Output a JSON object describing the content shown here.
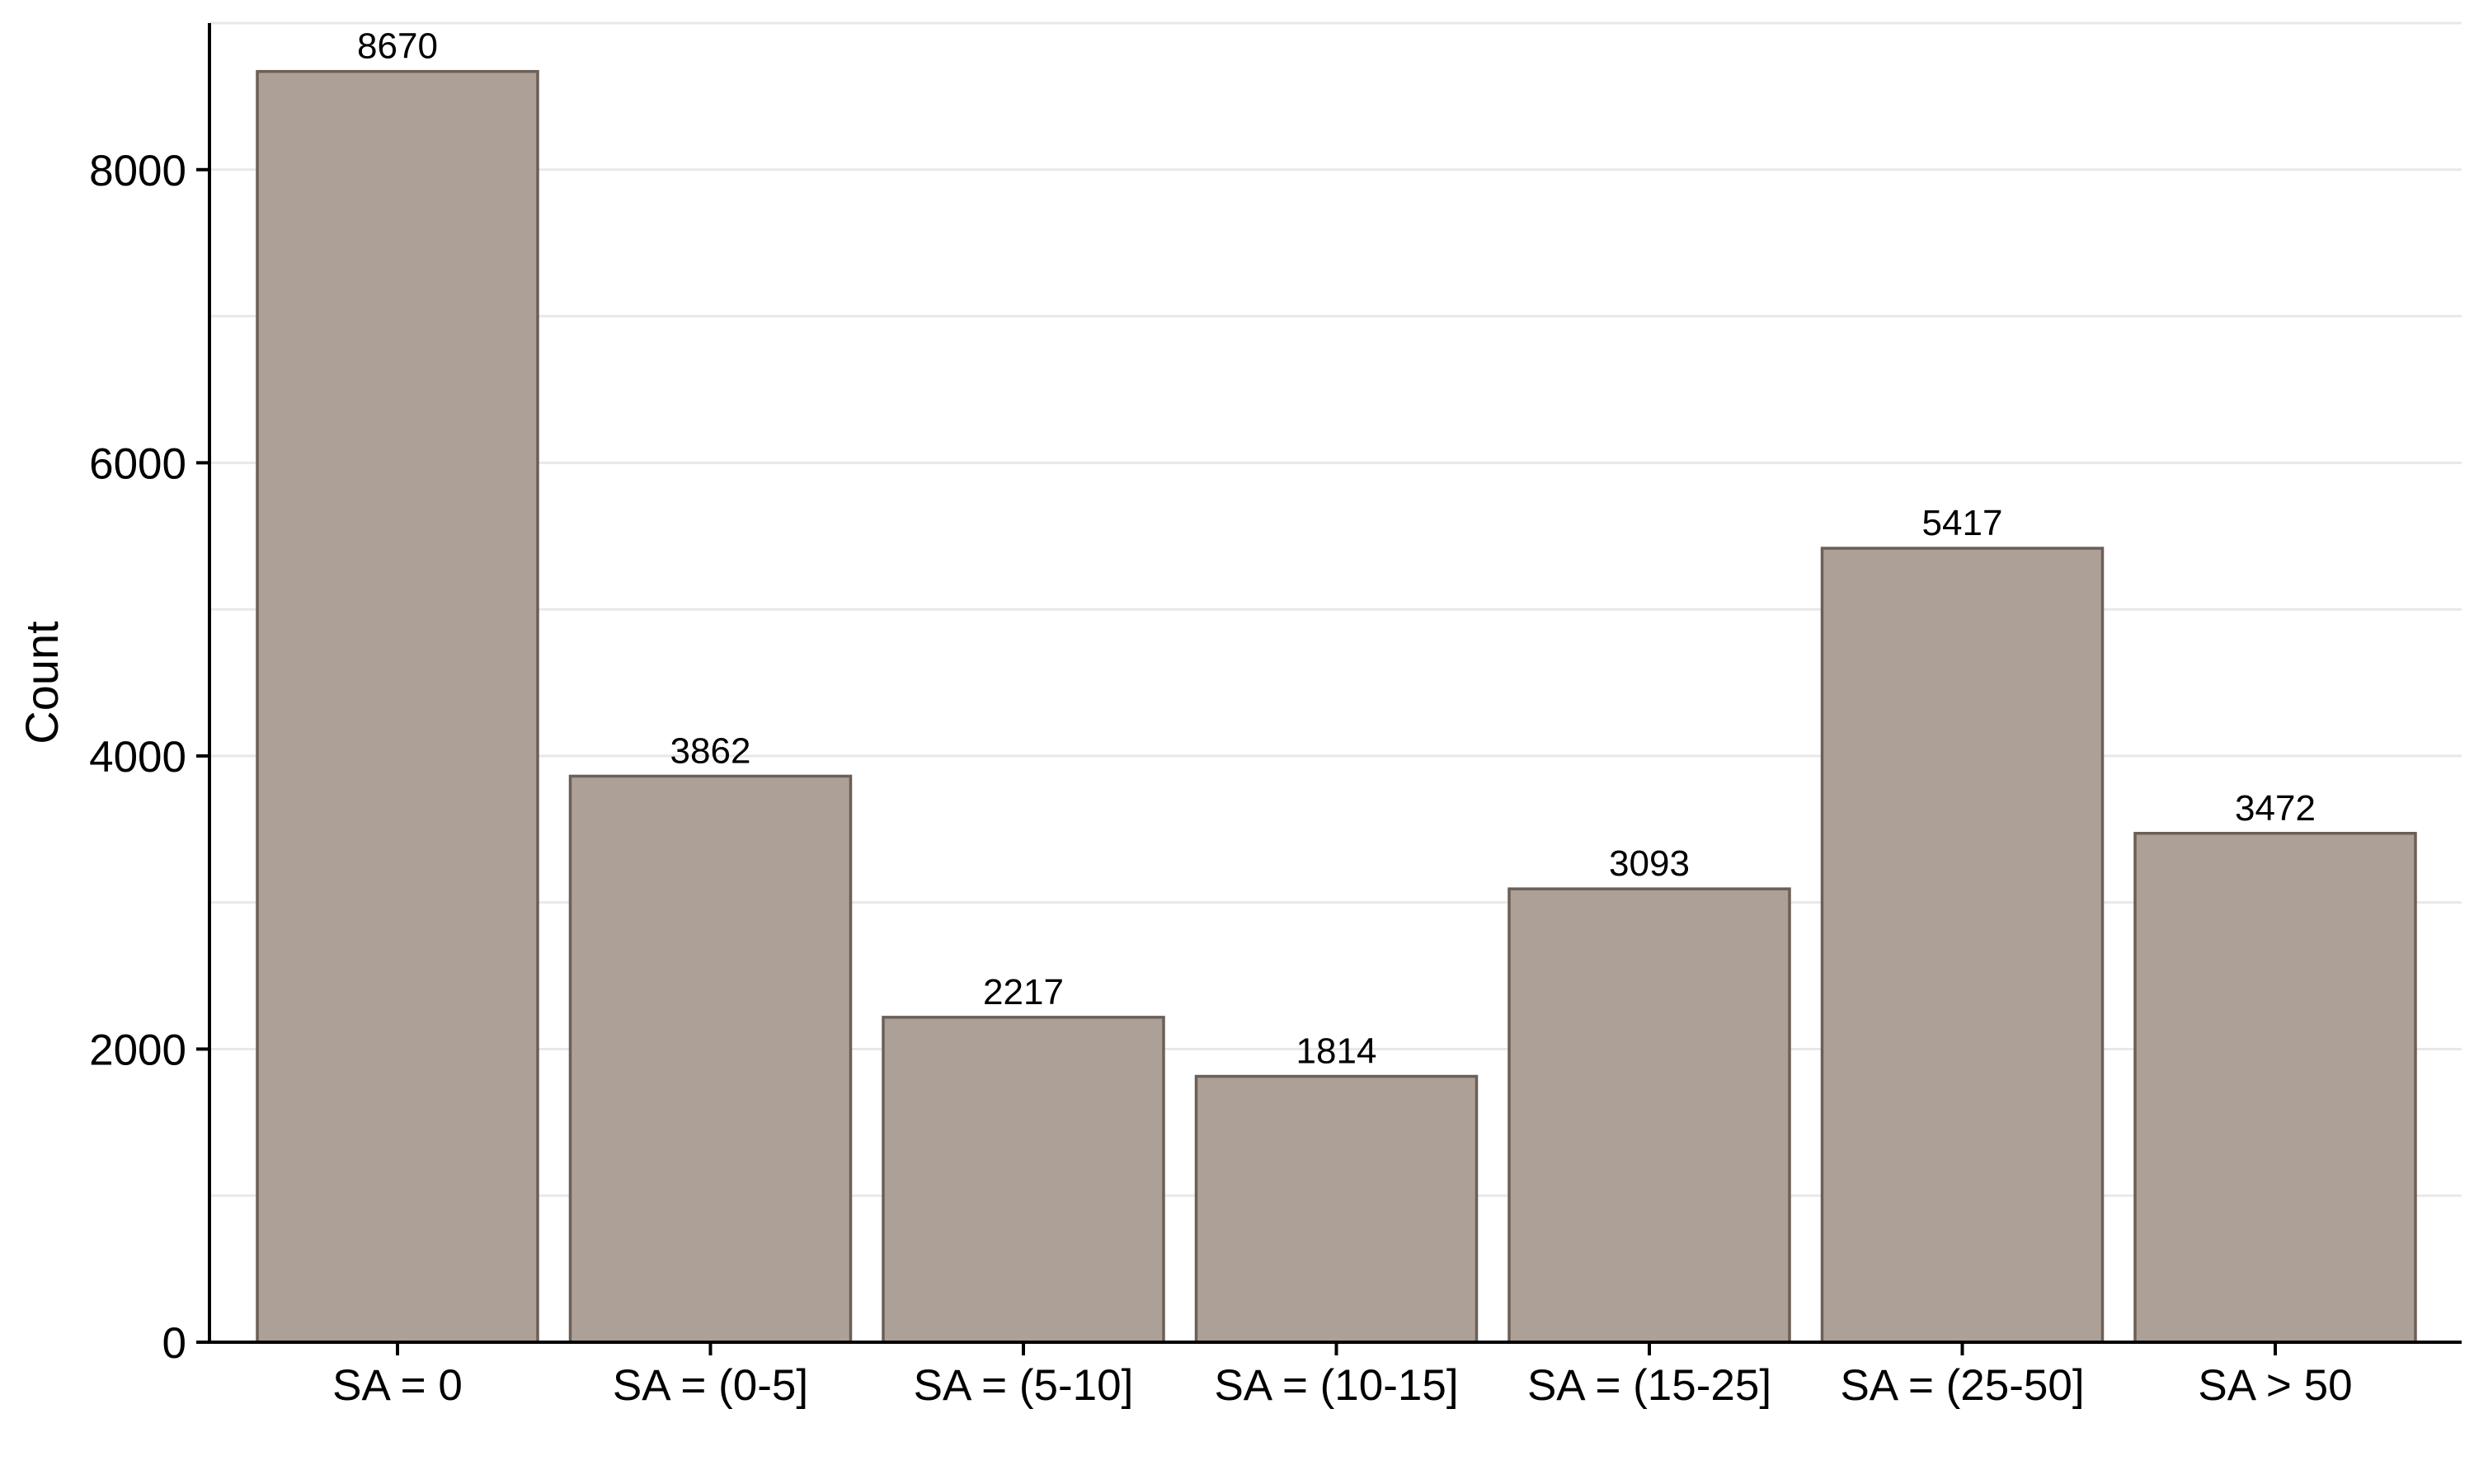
{
  "chart_data": {
    "type": "bar",
    "categories": [
      "SA = 0",
      "SA = (0-5]",
      "SA = (5-10]",
      "SA = (10-15]",
      "SA = (15-25]",
      "SA = (25-50]",
      "SA > 50"
    ],
    "values": [
      8670,
      3862,
      2217,
      1814,
      3093,
      5417,
      3472
    ],
    "data_labels": [
      "8670",
      "3862",
      "2217",
      "1814",
      "3093",
      "5417",
      "3472"
    ],
    "title": "",
    "xlabel": "",
    "ylabel": "Count",
    "ylim": [
      0,
      9000
    ],
    "yticks": [
      0,
      2000,
      4000,
      6000,
      8000
    ],
    "ytick_labels": [
      "0",
      "2000",
      "4000",
      "6000",
      "8000"
    ],
    "minor_gridlines": [
      1000,
      3000,
      5000,
      7000,
      9000
    ],
    "grid": true,
    "legend": "none",
    "colors": {
      "bar_fill": "#ada097",
      "bar_stroke": "#6b5f57",
      "gridline": "#e8e8e8",
      "axis": "#000000"
    }
  }
}
